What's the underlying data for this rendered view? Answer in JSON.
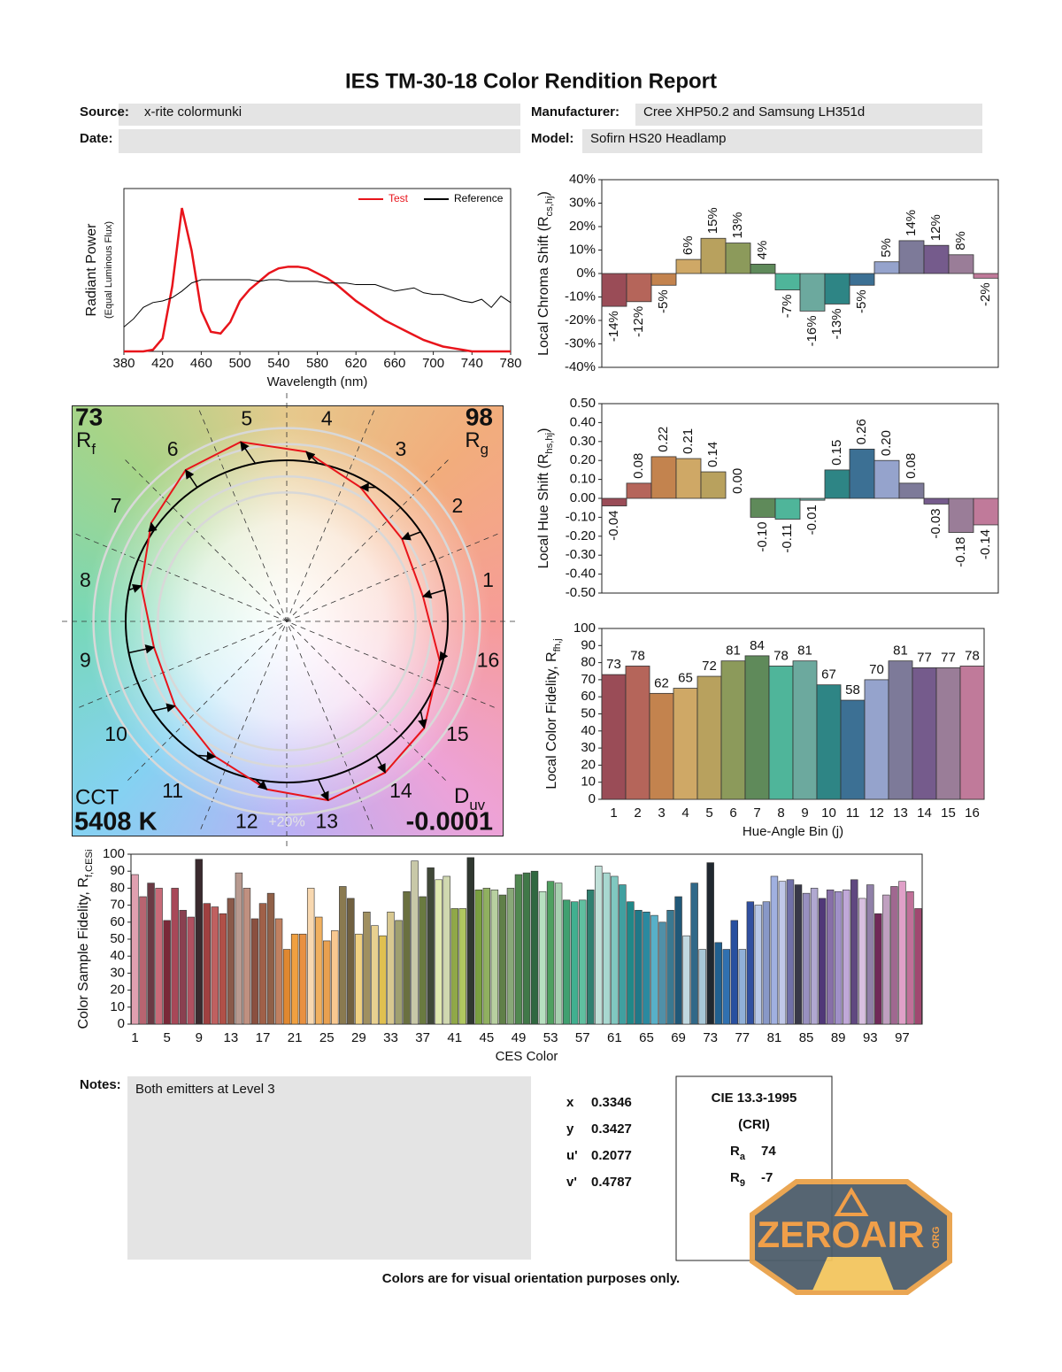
{
  "header": {
    "title": "IES TM-30-18 Color Rendition Report",
    "source_label": "Source:",
    "source": "x-rite colormunki",
    "manufacturer_label": "Manufacturer:",
    "manufacturer": "Cree XHP50.2 and Samsung LH351d",
    "date_label": "Date:",
    "model_label": "Model:",
    "model": "Sofirn HS20 Headlamp"
  },
  "chart_data": [
    {
      "type": "line",
      "ylabel": "Radiant Power",
      "ylabel_note": "(Equal Luminous Flux)",
      "xlabel": "Wavelength (nm)",
      "x": [
        380,
        390,
        400,
        410,
        420,
        430,
        440,
        450,
        460,
        470,
        480,
        490,
        500,
        510,
        520,
        530,
        540,
        550,
        560,
        570,
        580,
        590,
        600,
        610,
        620,
        630,
        640,
        650,
        660,
        670,
        680,
        690,
        700,
        710,
        720,
        730,
        740,
        750,
        760,
        770,
        780
      ],
      "xlim": [
        380,
        780
      ],
      "xticks": [
        380,
        420,
        460,
        500,
        540,
        580,
        620,
        660,
        700,
        740,
        780
      ],
      "ylim": [
        0,
        1
      ],
      "legend": "upper right",
      "series": [
        {
          "name": "Test",
          "color": "#e8141b",
          "values": [
            0,
            0,
            0,
            0.01,
            0.08,
            0.4,
            0.88,
            0.62,
            0.25,
            0.12,
            0.11,
            0.18,
            0.31,
            0.38,
            0.43,
            0.48,
            0.51,
            0.52,
            0.52,
            0.51,
            0.48,
            0.45,
            0.41,
            0.36,
            0.31,
            0.27,
            0.23,
            0.19,
            0.16,
            0.13,
            0.1,
            0.07,
            0.05,
            0.03,
            0.02,
            0.01,
            0,
            0,
            0,
            0,
            0
          ]
        },
        {
          "name": "Reference",
          "color": "#000000",
          "values": [
            0.15,
            0.2,
            0.27,
            0.3,
            0.31,
            0.33,
            0.37,
            0.42,
            0.44,
            0.44,
            0.44,
            0.44,
            0.44,
            0.44,
            0.43,
            0.44,
            0.44,
            0.43,
            0.43,
            0.43,
            0.43,
            0.42,
            0.42,
            0.42,
            0.41,
            0.41,
            0.41,
            0.39,
            0.37,
            0.38,
            0.39,
            0.36,
            0.35,
            0.35,
            0.33,
            0.31,
            0.3,
            0.32,
            0.27,
            0.34,
            0.3
          ]
        }
      ]
    },
    {
      "type": "bar",
      "ylabel": {
        "text": "Local Chroma Shift (R",
        "sub": "cs,hj",
        "end": ")"
      },
      "values": [
        -14,
        -12,
        -5,
        6,
        15,
        13,
        4,
        -7,
        -16,
        -13,
        -5,
        5,
        14,
        12,
        8,
        -2
      ],
      "value_labels": [
        "-14%",
        "-12%",
        "-5%",
        "6%",
        "15%",
        "13%",
        "4%",
        "-7%",
        "-16%",
        "-13%",
        "-5%",
        "5%",
        "14%",
        "12%",
        "8%",
        "-2%"
      ],
      "colors": [
        "#9a4c57",
        "#b5655a",
        "#c3834e",
        "#cfa866",
        "#b8a15e",
        "#8c9a5b",
        "#5f8a5a",
        "#4fb59a",
        "#6ca99e",
        "#2e8585",
        "#3c7094",
        "#95a3cc",
        "#7d7a99",
        "#755b8c",
        "#9a7d98",
        "#c07a9a"
      ],
      "ylim": [
        -40,
        40
      ],
      "yticks": [
        {
          "value": 40,
          "label": "40%"
        },
        {
          "value": 30,
          "label": "30%"
        },
        {
          "value": 20,
          "label": "20%"
        },
        {
          "value": 10,
          "label": "10%"
        },
        {
          "value": 0,
          "label": "0%"
        },
        {
          "value": -10,
          "label": "-10%"
        },
        {
          "value": -20,
          "label": "-20%"
        },
        {
          "value": -30,
          "label": "-30%"
        },
        {
          "value": -40,
          "label": "-40%"
        }
      ]
    },
    {
      "type": "bar",
      "ylabel": {
        "text": "Local Hue Shift (R",
        "sub": "hs,hj",
        "end": ")"
      },
      "values": [
        -0.04,
        0.08,
        0.22,
        0.21,
        0.14,
        0,
        -0.1,
        -0.11,
        -0.01,
        0.15,
        0.26,
        0.2,
        0.08,
        -0.03,
        -0.18,
        -0.14
      ],
      "value_labels": [
        "-0.04",
        "0.08",
        "0.22",
        "0.21",
        "0.14",
        "0.00",
        "-0.10",
        "-0.11",
        "-0.01",
        "0.15",
        "0.26",
        "0.20",
        "0.08",
        "-0.03",
        "-0.18",
        "-0.14"
      ],
      "colors": [
        "#9a4c57",
        "#b5655a",
        "#c3834e",
        "#cfa866",
        "#b8a15e",
        "#8c9a5b",
        "#5f8a5a",
        "#4fb59a",
        "#6ca99e",
        "#2e8585",
        "#3c7094",
        "#95a3cc",
        "#7d7a99",
        "#755b8c",
        "#9a7d98",
        "#c07a9a"
      ],
      "ylim": [
        -0.5,
        0.5
      ],
      "yticks": [
        {
          "value": 0.5,
          "label": "0.50"
        },
        {
          "value": 0.4,
          "label": "0.40"
        },
        {
          "value": 0.3,
          "label": "0.30"
        },
        {
          "value": 0.2,
          "label": "0.20"
        },
        {
          "value": 0.1,
          "label": "0.10"
        },
        {
          "value": 0,
          "label": "0.00"
        },
        {
          "value": -0.1,
          "label": "-0.10"
        },
        {
          "value": -0.2,
          "label": "-0.20"
        },
        {
          "value": -0.3,
          "label": "-0.30"
        },
        {
          "value": -0.4,
          "label": "-0.40"
        },
        {
          "value": -0.5,
          "label": "-0.50"
        }
      ]
    },
    {
      "type": "bar",
      "ylabel": {
        "text": "Local Color Fidelity, R",
        "sub": "fh,j"
      },
      "xlabel": "Hue-Angle Bin (j)",
      "categories": [
        1,
        2,
        3,
        4,
        5,
        6,
        7,
        8,
        9,
        10,
        11,
        12,
        13,
        14,
        15,
        16
      ],
      "values": [
        73,
        78,
        62,
        65,
        72,
        81,
        84,
        78,
        81,
        67,
        58,
        70,
        81,
        77,
        77,
        78
      ],
      "colors": [
        "#9a4c57",
        "#b5655a",
        "#c3834e",
        "#cfa866",
        "#b8a15e",
        "#8c9a5b",
        "#5f8a5a",
        "#4fb59a",
        "#6ca99e",
        "#2e8585",
        "#3c7094",
        "#95a3cc",
        "#7d7a99",
        "#755b8c",
        "#9a7d98",
        "#c07a9a"
      ],
      "ylim": [
        0,
        100
      ],
      "yticks": [
        0,
        10,
        20,
        30,
        40,
        50,
        60,
        70,
        80,
        90,
        100
      ]
    },
    {
      "type": "bar",
      "ylabel": {
        "text": "Color Sample Fidelity, R",
        "sub": "f,CESi"
      },
      "xlabel": "CES Color",
      "categories": [
        1,
        null,
        null,
        null,
        5,
        null,
        null,
        null,
        9,
        null,
        null,
        null,
        13,
        null,
        null,
        null,
        17,
        null,
        null,
        null,
        21,
        null,
        null,
        null,
        25,
        null,
        null,
        null,
        29,
        null,
        null,
        null,
        33,
        null,
        null,
        null,
        37,
        null,
        null,
        null,
        41,
        null,
        null,
        null,
        45,
        null,
        null,
        null,
        49,
        null,
        null,
        null,
        53,
        null,
        null,
        null,
        57,
        null,
        null,
        null,
        61,
        null,
        null,
        null,
        65,
        null,
        null,
        null,
        69,
        null,
        null,
        null,
        73,
        null,
        null,
        null,
        77,
        null,
        null,
        null,
        81,
        null,
        null,
        null,
        85,
        null,
        null,
        null,
        89,
        null,
        null,
        null,
        93,
        null,
        null,
        null,
        97,
        null,
        null
      ],
      "values": [
        88,
        75,
        83,
        80,
        61,
        80,
        67,
        63,
        97,
        71,
        69,
        65,
        74,
        89,
        80,
        62,
        71,
        77,
        62,
        44,
        53,
        53,
        80,
        63,
        49,
        55,
        81,
        74,
        53,
        66,
        58,
        52,
        66,
        61,
        78,
        96,
        75,
        92,
        85,
        87,
        68,
        68,
        98,
        79,
        80,
        79,
        76,
        80,
        88,
        89,
        90,
        78,
        84,
        83,
        73,
        72,
        73,
        79,
        93,
        89,
        87,
        82,
        72,
        67,
        66,
        64,
        60,
        67,
        75,
        52,
        83,
        44,
        95,
        48,
        44,
        61,
        44,
        72,
        70,
        72,
        87,
        84,
        85,
        82,
        77,
        80,
        74,
        79,
        78,
        79,
        85,
        74,
        82,
        65,
        76,
        81,
        84,
        78,
        68
      ],
      "colors": [
        "#e0a0b0",
        "#b86470",
        "#6a3a44",
        "#c86a78",
        "#7a2838",
        "#a84858",
        "#8a4050",
        "#b05060",
        "#3a2a2e",
        "#a04040",
        "#c06060",
        "#b05048",
        "#8a5a4a",
        "#b89a90",
        "#c09080",
        "#8a5040",
        "#a06048",
        "#906048",
        "#c08060",
        "#e08830",
        "#f0a040",
        "#e89040",
        "#f8d8b0",
        "#f0b060",
        "#e8a050",
        "#f8c890",
        "#8a7a50",
        "#706040",
        "#f0d080",
        "#a09060",
        "#e8d090",
        "#e0c050",
        "#d8c890",
        "#a0a070",
        "#6a7040",
        "#c8c8a8",
        "#6a7a40",
        "#404838",
        "#e0e8b0",
        "#d0d8b0",
        "#90a848",
        "#b0c860",
        "#303830",
        "#7aa040",
        "#90b060",
        "#b8d0a0",
        "#608048",
        "#88a878",
        "#508850",
        "#407848",
        "#306840",
        "#b8e0c0",
        "#50a060",
        "#a8d0b0",
        "#40a070",
        "#40b090",
        "#60c0a0",
        "#308070",
        "#c0e0d8",
        "#a8d8d0",
        "#80c8c0",
        "#40a0a0",
        "#208888",
        "#207888",
        "#2a8aa0",
        "#58b0c8",
        "#5090a8",
        "#3a7890",
        "#205878",
        "#c0d8e0",
        "#306888",
        "#a8c8d8",
        "#202830",
        "#206090",
        "#3070b0",
        "#2850a0",
        "#90b0d8",
        "#3050a0",
        "#b8c8e8",
        "#8898c8",
        "#a0b0e0",
        "#c0c8e8",
        "#7070a8",
        "#383848",
        "#9890c0",
        "#b0a8d0",
        "#503878",
        "#8870a8",
        "#a090c8",
        "#c0a8d8",
        "#604880",
        "#d8c0e0",
        "#9080a8",
        "#702858",
        "#c0a0c0",
        "#a06890",
        "#e0a0c8",
        "#c07098",
        "#a04870"
      ],
      "ylim": [
        0,
        100
      ],
      "yticks": [
        0,
        10,
        20,
        30,
        40,
        50,
        60,
        70,
        80,
        90,
        100
      ]
    },
    {
      "type": "vector",
      "rf": 73,
      "rf_label": {
        "text": "R",
        "sub": "f"
      },
      "rg": 98,
      "rg_label": {
        "text": "R",
        "sub": "g"
      },
      "cct_label": "CCT",
      "cct": "5408 K",
      "duv_label": {
        "text": "D",
        "sub": "uv"
      },
      "duv": -0.0001,
      "bins": [
        1,
        2,
        3,
        4,
        5,
        6,
        7,
        8,
        9,
        10,
        11,
        12,
        13,
        14,
        15,
        16
      ],
      "ring_label": "+20%",
      "test_color": "#e8141b",
      "reference_color": "#000000"
    }
  ],
  "notes": {
    "label": "Notes:",
    "text": "Both emitters at Level 3"
  },
  "metrics": [
    {
      "label": "x",
      "value": 0.3346
    },
    {
      "label": "y",
      "value": 0.3427
    },
    {
      "label": "u'",
      "value": 0.2077
    },
    {
      "label": "v'",
      "value": 0.4787
    }
  ],
  "cri": {
    "title": "CIE 13.3-1995",
    "subtitle": "(CRI)",
    "ra": {
      "text": "R",
      "sub": "a",
      "value": 74
    },
    "r9": {
      "text": "R",
      "sub": "9",
      "value": -7
    }
  },
  "footer": "Colors are for visual orientation purposes only.",
  "watermark": {
    "text": "ZEROAIR",
    "sub": "ORG"
  }
}
